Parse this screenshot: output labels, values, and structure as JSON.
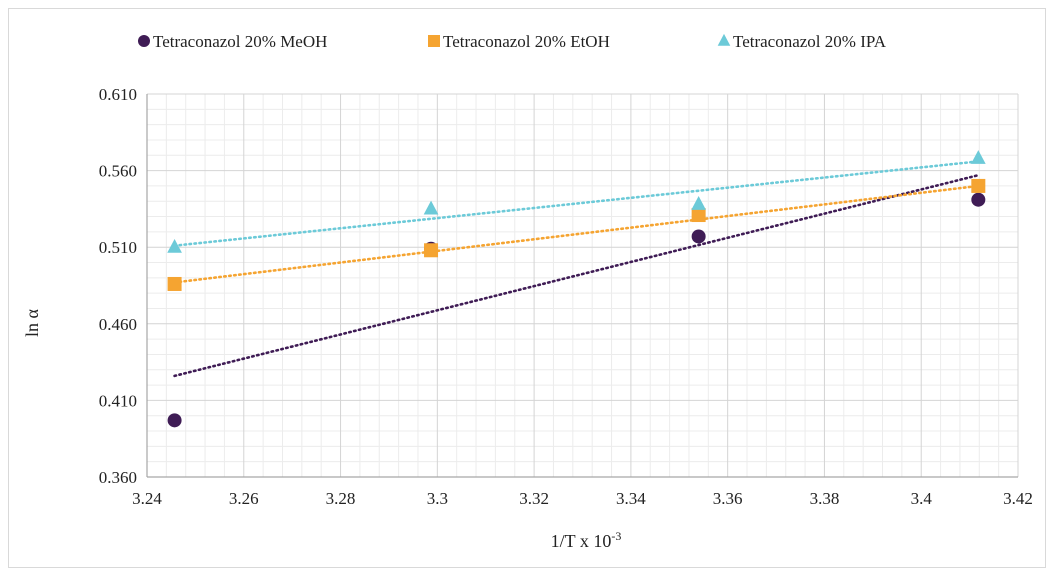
{
  "colors": {
    "meoh": "#3f1c55",
    "etoh": "#f5a431",
    "ipa": "#6ccad8",
    "grid_major": "#d4d4d4",
    "grid_minor": "#ececec",
    "axis": "#a6a6a6"
  },
  "chart_data": {
    "type": "scatter",
    "title": "",
    "xlabel": "1/T x 10",
    "xlabel_sup": "-3",
    "ylabel": "ln α",
    "xlim": [
      3.24,
      3.42
    ],
    "ylim": [
      0.36,
      0.61
    ],
    "xticks": [
      3.24,
      3.26,
      3.28,
      3.3,
      3.32,
      3.34,
      3.36,
      3.38,
      3.4,
      3.42
    ],
    "xtick_labels": [
      "3.24",
      "3.26",
      "3.28",
      "3.3",
      "3.32",
      "3.34",
      "3.36",
      "3.38",
      "3.4",
      "3.42"
    ],
    "yticks": [
      0.36,
      0.41,
      0.46,
      0.51,
      0.56,
      0.61
    ],
    "ytick_labels": [
      "0.360",
      "0.410",
      "0.460",
      "0.510",
      "0.560",
      "0.610"
    ],
    "grid": true,
    "minor_grid": true,
    "legend_position": "top",
    "trendline": "linear, dotted",
    "series": [
      {
        "name": "Tetraconazol 20% MeOH",
        "marker": "circle",
        "color": "#3f1c55",
        "x": [
          3.2457,
          3.2987,
          3.354,
          3.4118
        ],
        "y": [
          0.397,
          0.509,
          0.517,
          0.541
        ],
        "trend": [
          [
            3.2457,
            0.426
          ],
          [
            3.4118,
            0.557
          ]
        ]
      },
      {
        "name": "Tetraconazol 20% EtOH",
        "marker": "square",
        "color": "#f5a431",
        "x": [
          3.2457,
          3.2987,
          3.354,
          3.4118
        ],
        "y": [
          0.486,
          0.508,
          0.531,
          0.55
        ],
        "trend": [
          [
            3.2457,
            0.487
          ],
          [
            3.4118,
            0.55
          ]
        ]
      },
      {
        "name": "Tetraconazol 20% IPA",
        "marker": "triangle",
        "color": "#6ccad8",
        "x": [
          3.2457,
          3.2987,
          3.354,
          3.4118
        ],
        "y": [
          0.51,
          0.535,
          0.538,
          0.568
        ],
        "trend": [
          [
            3.2457,
            0.511
          ],
          [
            3.4118,
            0.566
          ]
        ]
      }
    ]
  }
}
